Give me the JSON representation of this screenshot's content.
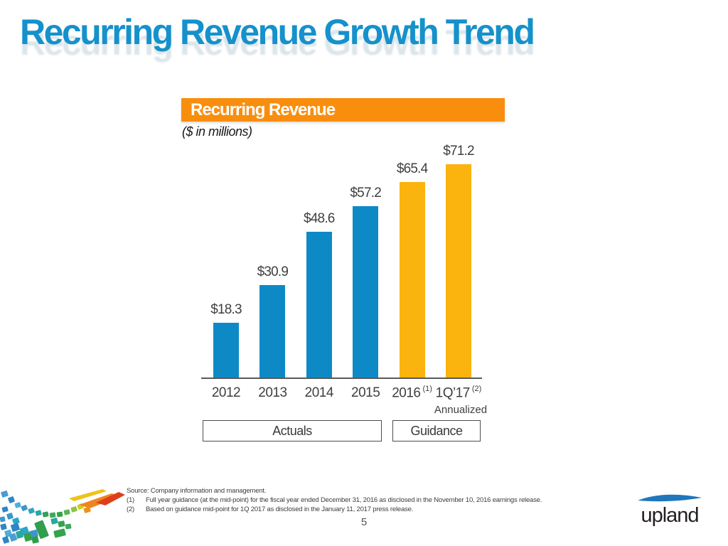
{
  "slide": {
    "title": "Recurring Revenue Growth Trend",
    "page_number": "5"
  },
  "panel": {
    "header": "Recurring Revenue",
    "units_note": "($ in millions)"
  },
  "chart_data": {
    "type": "bar",
    "title": "Recurring Revenue",
    "ylabel": "$ in millions",
    "xlabel": "",
    "categories": [
      "2012",
      "2013",
      "2014",
      "2015",
      "2016",
      "1Q’17"
    ],
    "category_superscripts": [
      "",
      "",
      "",
      "",
      "(1)",
      "(2)"
    ],
    "values": [
      18.3,
      30.9,
      48.6,
      57.2,
      65.4,
      71.2
    ],
    "value_labels": [
      "$18.3",
      "$30.9",
      "$48.6",
      "$57.2",
      "$65.4",
      "$71.2"
    ],
    "groups": [
      "actuals",
      "actuals",
      "actuals",
      "actuals",
      "guidance",
      "guidance"
    ],
    "group_colors": {
      "actuals": "#0D8AC6",
      "guidance": "#FBB30D"
    },
    "last_category_note": "Annualized",
    "legend": [
      "Actuals",
      "Guidance"
    ],
    "ylim": [
      0,
      75
    ],
    "grid": false,
    "legend_position": "below"
  },
  "footer": {
    "source": "Source: Company information and management.",
    "notes": [
      {
        "marker": "(1)",
        "text": "Full year guidance (at the mid-point) for the fiscal year ended December 31, 2016 as disclosed in the November 10, 2016 earnings release."
      },
      {
        "marker": "(2)",
        "text": "Based on guidance mid-point for 1Q 2017 as disclosed in the January 11, 2017 press release."
      }
    ]
  },
  "logo": {
    "wordmark": "upland"
  },
  "icons": {
    "logo_swoosh": "upland-swoosh-icon",
    "mosaic": "mosaic-tiles-decoration"
  },
  "colors": {
    "title_blue": "#1591CB",
    "header_orange": "#F98E0E",
    "bar_blue": "#0D8AC6",
    "bar_amber": "#FBB30D",
    "axis_gray": "#58595B",
    "text_dark": "#3F3F3F"
  }
}
